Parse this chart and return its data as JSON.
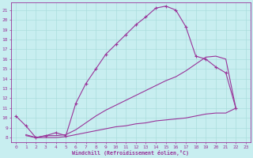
{
  "xlabel": "Windchill (Refroidissement éolien,°C)",
  "bg_color": "#c8eef0",
  "line_color": "#993399",
  "grid_color": "#aadddd",
  "curve1_x": [
    0,
    1,
    2,
    3,
    4,
    5,
    6,
    7,
    8,
    9,
    10,
    11,
    12,
    13,
    14,
    15,
    16,
    17,
    18,
    19,
    20,
    21,
    22
  ],
  "curve1_y": [
    10.2,
    9.2,
    8.0,
    8.2,
    8.5,
    8.2,
    11.5,
    13.5,
    15.0,
    16.5,
    17.5,
    18.5,
    19.5,
    20.3,
    21.2,
    21.4,
    21.0,
    19.3,
    16.3,
    16.0,
    15.2,
    14.6,
    11.0
  ],
  "curve2_x": [
    1,
    2,
    3,
    4,
    5,
    6,
    7,
    8,
    9,
    10,
    11,
    12,
    13,
    14,
    15,
    16,
    17,
    18,
    19,
    20,
    21,
    22
  ],
  "curve2_y": [
    8.3,
    8.0,
    8.2,
    8.2,
    8.3,
    8.8,
    9.5,
    10.2,
    10.8,
    11.3,
    11.8,
    12.3,
    12.8,
    13.3,
    13.8,
    14.2,
    14.8,
    15.5,
    16.2,
    16.3,
    16.0,
    11.0
  ],
  "curve3_x": [
    1,
    2,
    3,
    4,
    5,
    6,
    7,
    8,
    9,
    10,
    11,
    12,
    13,
    14,
    15,
    16,
    17,
    18,
    19,
    20,
    21,
    22
  ],
  "curve3_y": [
    8.2,
    8.0,
    8.0,
    8.0,
    8.1,
    8.3,
    8.5,
    8.7,
    8.9,
    9.1,
    9.2,
    9.4,
    9.5,
    9.7,
    9.8,
    9.9,
    10.0,
    10.2,
    10.4,
    10.5,
    10.5,
    11.0
  ],
  "xlim": [
    -0.5,
    23.5
  ],
  "ylim": [
    7.5,
    21.8
  ],
  "yticks": [
    8,
    9,
    10,
    11,
    12,
    13,
    14,
    15,
    16,
    17,
    18,
    19,
    20,
    21
  ],
  "xticks": [
    0,
    1,
    2,
    3,
    4,
    5,
    6,
    7,
    8,
    9,
    10,
    11,
    12,
    13,
    14,
    15,
    16,
    17,
    18,
    19,
    20,
    21,
    22,
    23
  ]
}
